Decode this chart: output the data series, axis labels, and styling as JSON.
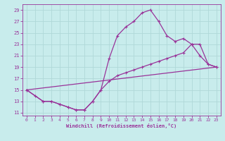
{
  "xlabel": "Windchill (Refroidissement éolien,°C)",
  "background_color": "#c8ecec",
  "grid_color": "#b0d8d8",
  "line_color": "#993399",
  "xlim": [
    -0.5,
    23.5
  ],
  "ylim": [
    10.5,
    30
  ],
  "yticks": [
    11,
    13,
    15,
    17,
    19,
    21,
    23,
    25,
    27,
    29
  ],
  "xticks": [
    0,
    1,
    2,
    3,
    4,
    5,
    6,
    7,
    8,
    9,
    10,
    11,
    12,
    13,
    14,
    15,
    16,
    17,
    18,
    19,
    20,
    21,
    22,
    23
  ],
  "line1_x": [
    0,
    1,
    2,
    3,
    4,
    5,
    6,
    7,
    8,
    9,
    10,
    11,
    12,
    13,
    14,
    15,
    16,
    17,
    18,
    19,
    20,
    21,
    22,
    23
  ],
  "line1_y": [
    15,
    14,
    13,
    13,
    12.5,
    12,
    11.5,
    11.5,
    13,
    15,
    20.5,
    24.5,
    26,
    27,
    28.5,
    29,
    27,
    24.5,
    23.5,
    24,
    23,
    21,
    19.5,
    19
  ],
  "line2_x": [
    0,
    2,
    3,
    4,
    5,
    6,
    7,
    8,
    9,
    10,
    11,
    12,
    13,
    14,
    15,
    16,
    17,
    18,
    19,
    20,
    21,
    22,
    23
  ],
  "line2_y": [
    15,
    13,
    13,
    12.5,
    12,
    11.5,
    11.5,
    13,
    15,
    16.5,
    17.5,
    18,
    18.5,
    19,
    19.5,
    20,
    20.5,
    21,
    21.5,
    23,
    23,
    19.5,
    19
  ],
  "line3_x": [
    0,
    23
  ],
  "line3_y": [
    15,
    19
  ],
  "marker": "P",
  "markersize": 2.5,
  "linewidth": 0.9
}
